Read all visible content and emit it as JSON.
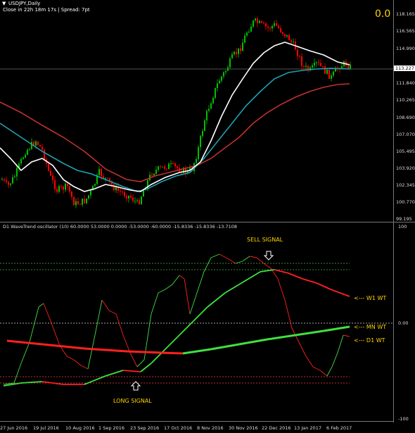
{
  "header": {
    "symbol": "USDJPY,Daily",
    "info": "Close in 22h 18m 17s | Spread: 7pt",
    "counter": "0.0"
  },
  "price_axis": [
    "118.165",
    "116.565",
    "114.990",
    "113.227",
    "111.840",
    "110.265",
    "108.690",
    "107.070",
    "105.495",
    "103.920",
    "102.345",
    "100.770",
    "99.195"
  ],
  "current_price": "113.227",
  "oscillator": {
    "title": "D1 WaveTrend oscillator (10) 60.0000 53.0000 0.0000 -53.0000 -60.0000 -15.8336 -15.8336 -13.7108",
    "axis": {
      "top": "100",
      "mid": "0.00",
      "bottom": "-100"
    }
  },
  "annotations": {
    "sell_signal": "SELL SIGNAL",
    "long_signal": "LONG SIGNAL",
    "w1": "<--- W1 WT",
    "mn": "<--- MN WT",
    "d1": "<--- D1 WT"
  },
  "dates": [
    "27 Jun 2016",
    "19 Jul 2016",
    "10 Aug 2016",
    "1 Sep 2016",
    "23 Sep 2016",
    "17 Oct 2016",
    "8 Nov 2016",
    "30 Nov 2016",
    "22 Dec 2016",
    "13 Jan 2017",
    "6 Feb 2017"
  ],
  "colors": {
    "bull": "#00c000",
    "bear": "#ff0000",
    "ma_white": "#ffffff",
    "ma_teal": "#20a0b0",
    "ma_red": "#c03030",
    "annotation": "#ffd400",
    "osc_green": "#40e040",
    "osc_red": "#ff2020"
  }
}
